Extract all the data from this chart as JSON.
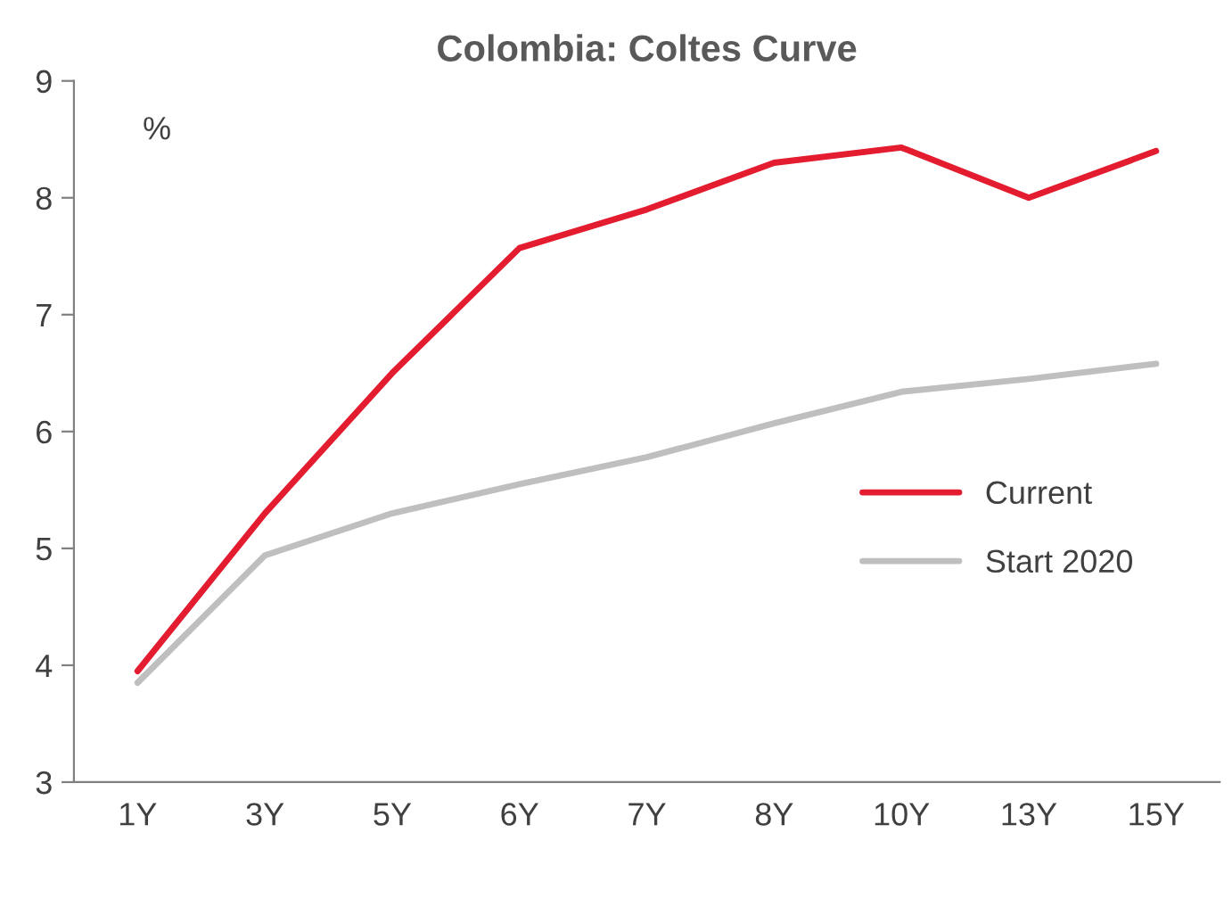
{
  "chart_data": {
    "type": "line",
    "title": "Colombia: Coltes Curve",
    "ylabel": "%",
    "categories": [
      "1Y",
      "3Y",
      "5Y",
      "6Y",
      "7Y",
      "8Y",
      "10Y",
      "13Y",
      "15Y"
    ],
    "series": [
      {
        "name": "Current",
        "color": "#e31d2f",
        "values": [
          3.95,
          5.3,
          6.5,
          7.57,
          7.9,
          8.3,
          8.43,
          8.0,
          8.4
        ]
      },
      {
        "name": "Start 2020",
        "color": "#bfbfbf",
        "values": [
          3.85,
          4.94,
          5.3,
          5.55,
          5.78,
          6.07,
          6.34,
          6.45,
          6.58
        ]
      }
    ],
    "ylim": [
      3,
      9
    ],
    "yticks": [
      3,
      4,
      5,
      6,
      7,
      8,
      9
    ],
    "grid": false,
    "legend": "right",
    "marker": "none",
    "line_style": "solid"
  }
}
